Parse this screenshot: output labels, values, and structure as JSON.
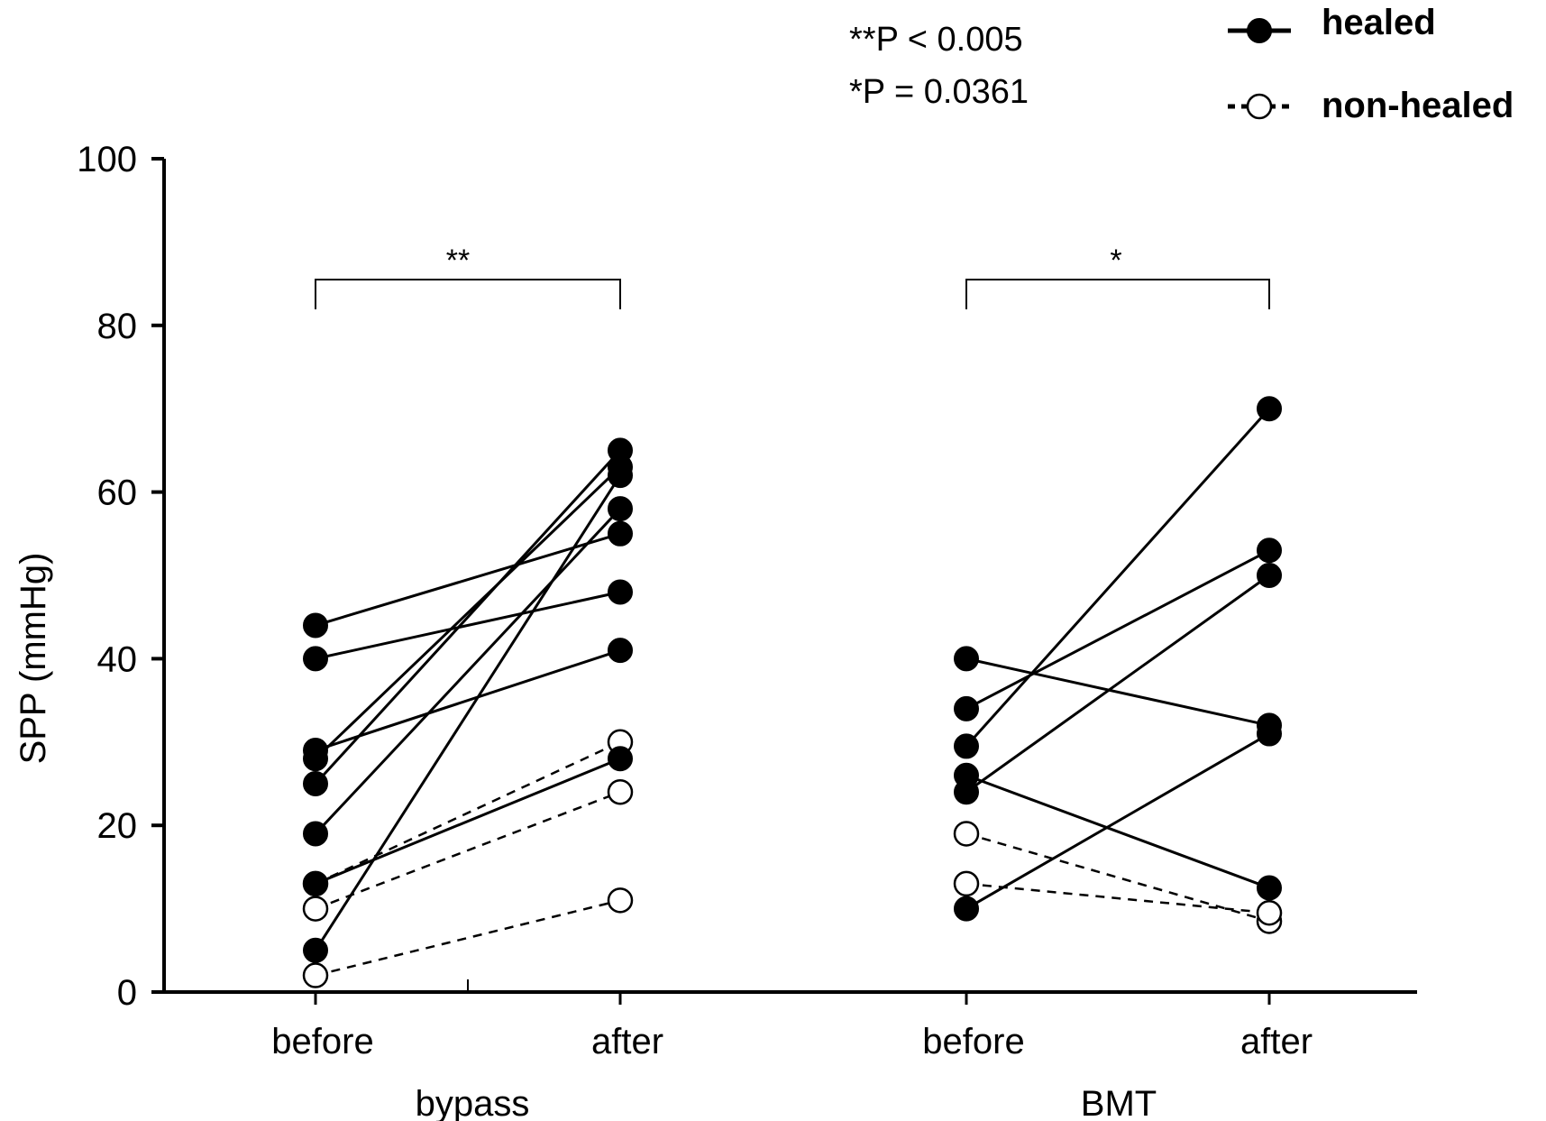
{
  "chart_data": {
    "type": "scatter",
    "title": "",
    "ylabel": "SPP (mmHg)",
    "ylim": [
      0,
      100
    ],
    "yticks": [
      0,
      20,
      40,
      60,
      80,
      100
    ],
    "x_tick_labels": [
      "before",
      "after",
      "before",
      "after"
    ],
    "groups": [
      "bypass",
      "BMT"
    ],
    "legend": [
      {
        "key": "healed",
        "label": "healed",
        "marker": "filled-circle",
        "line": "solid"
      },
      {
        "key": "non_healed",
        "label": "non-healed",
        "marker": "open-circle",
        "line": "dashed"
      }
    ],
    "legend_position": "top-right",
    "annotations": [
      "**P < 0.005",
      "*P = 0.0361"
    ],
    "significance": [
      {
        "group": "bypass",
        "label": "**"
      },
      {
        "group": "BMT",
        "label": "*"
      }
    ],
    "pairs": {
      "bypass": [
        {
          "status": "healed",
          "before": 44,
          "after": 55
        },
        {
          "status": "healed",
          "before": 40,
          "after": 48
        },
        {
          "status": "healed",
          "before": 29,
          "after": 41
        },
        {
          "status": "healed",
          "before": 28,
          "after": 63
        },
        {
          "status": "healed",
          "before": 25,
          "after": 65
        },
        {
          "status": "healed",
          "before": 19,
          "after": 58
        },
        {
          "status": "healed",
          "before": 5,
          "after": 62
        },
        {
          "status": "healed",
          "before": 13,
          "after": 28
        },
        {
          "status": "non-healed",
          "before": 13,
          "after": 30
        },
        {
          "status": "non-healed",
          "before": 10,
          "after": 24
        },
        {
          "status": "non-healed",
          "before": 2,
          "after": 11
        }
      ],
      "BMT": [
        {
          "status": "healed",
          "before": 40,
          "after": 32
        },
        {
          "status": "healed",
          "before": 34,
          "after": 53
        },
        {
          "status": "healed",
          "before": 29.5,
          "after": 70
        },
        {
          "status": "healed",
          "before": 26,
          "after": 12.5
        },
        {
          "status": "healed",
          "before": 24,
          "after": 50
        },
        {
          "status": "healed",
          "before": 10,
          "after": 31
        },
        {
          "status": "non-healed",
          "before": 19,
          "after": 8.5
        },
        {
          "status": "non-healed",
          "before": 13,
          "after": 9.5
        }
      ]
    }
  }
}
